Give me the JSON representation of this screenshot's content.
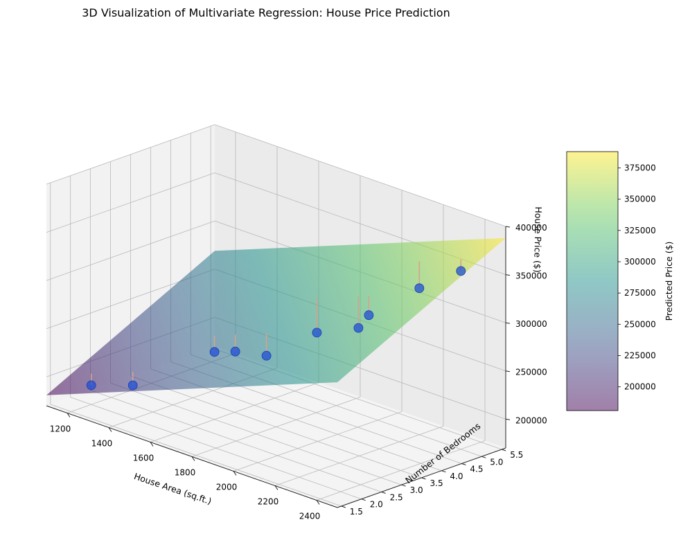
{
  "chart_data": {
    "type": "surface3d-scatter",
    "title": "3D Visualization of Multivariate Regression: House Price Prediction",
    "xlabel": "House Area (sq.ft.)",
    "ylabel": "Number of Bedrooms",
    "zlabel": "House Price ($)",
    "xlim": [
      1100,
      2500
    ],
    "ylim": [
      1.4,
      5.6
    ],
    "zlim": [
      170000,
      400000
    ],
    "xticks": [
      1200,
      1400,
      1600,
      1800,
      2000,
      2200,
      2400
    ],
    "yticks": [
      1.5,
      2.0,
      2.5,
      3.0,
      3.5,
      4.0,
      4.5,
      5.0,
      5.5
    ],
    "zticks": [
      200000,
      250000,
      300000,
      350000,
      400000
    ],
    "xtick_labels": [
      "1200",
      "1400",
      "1600",
      "1800",
      "2000",
      "2200",
      "2400"
    ],
    "ytick_labels": [
      "1.5",
      "2.0",
      "2.5",
      "3.0",
      "3.5",
      "4.0",
      "4.5",
      "5.0",
      "5.5"
    ],
    "ztick_labels": [
      "200000",
      "250000",
      "300000",
      "350000",
      "400000"
    ],
    "grid": true,
    "surface": {
      "corners": [
        {
          "x": 1100,
          "y": 1.4,
          "z": 181000
        },
        {
          "x": 2500,
          "y": 1.4,
          "z": 300000
        },
        {
          "x": 1100,
          "y": 5.6,
          "z": 269000
        },
        {
          "x": 2500,
          "y": 5.6,
          "z": 388000
        }
      ]
    },
    "points": [
      {
        "x": 1200,
        "y": 2,
        "z": 190000
      },
      {
        "x": 1400,
        "y": 2,
        "z": 205000
      },
      {
        "x": 1600,
        "y": 3,
        "z": 240000
      },
      {
        "x": 1700,
        "y": 3,
        "z": 248000
      },
      {
        "x": 1850,
        "y": 3,
        "z": 255000
      },
      {
        "x": 1900,
        "y": 4,
        "z": 268000
      },
      {
        "x": 2100,
        "y": 4,
        "z": 288000
      },
      {
        "x": 2150,
        "y": 4,
        "z": 305000
      },
      {
        "x": 2200,
        "y": 5,
        "z": 322000
      },
      {
        "x": 2400,
        "y": 5,
        "z": 355000
      }
    ],
    "colorbar": {
      "label": "Predicted Price ($)",
      "min": 181000,
      "max": 388000,
      "ticks": [
        200000,
        225000,
        250000,
        275000,
        300000,
        325000,
        350000,
        375000
      ],
      "tick_labels": [
        "200000",
        "225000",
        "250000",
        "275000",
        "300000",
        "325000",
        "350000",
        "375000"
      ],
      "colormap": "viridis",
      "alpha": 0.5
    },
    "colors": {
      "point": "#1f4fd6",
      "residual": "#d4a28f",
      "pane_left": "#f2f2f2",
      "pane_back": "#ebebeb",
      "pane_floor": "#f4f4f4",
      "grid": "#b8b8b8"
    }
  }
}
